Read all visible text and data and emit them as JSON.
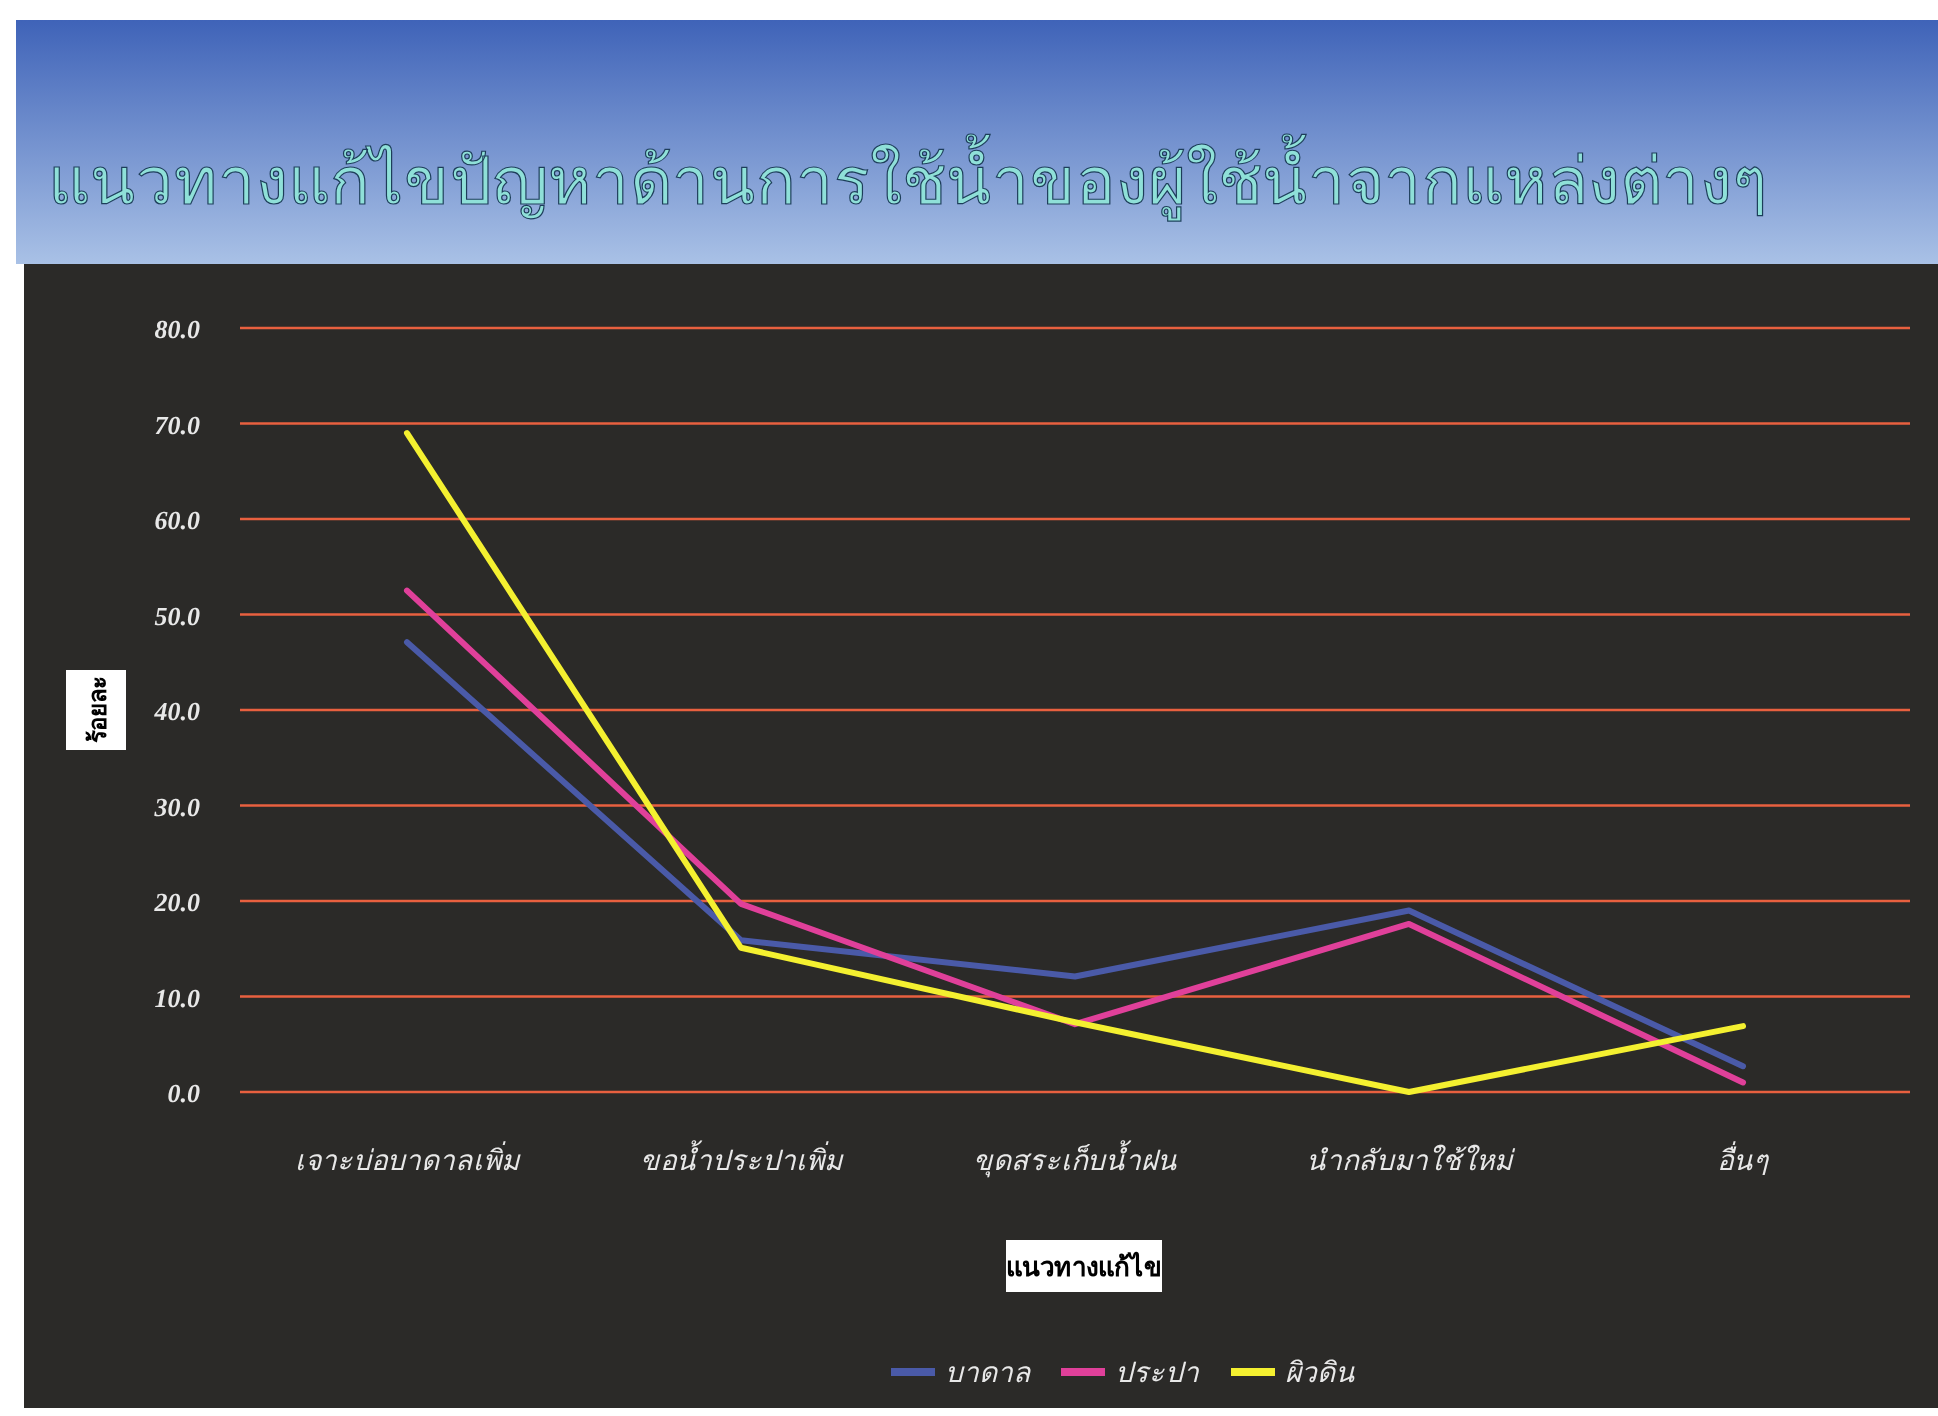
{
  "chart_data": {
    "type": "line",
    "title": "แนวทางแก้ไขปัญหาด้านการใช้น้ำของผู้ใช้น้ำจากแหล่งต่างๆ",
    "xlabel": "แนวทางแก้ไข",
    "ylabel": "ร้อยละ",
    "categories": [
      "เจาะบ่อบาดาลเพิ่ม",
      "ขอน้ำประปาเพิ่ม",
      "ขุดสระเก็บน้ำฝน",
      "นำกลับมาใช้ใหม่",
      "อื่นๆ"
    ],
    "series": [
      {
        "name": "บาดาล",
        "color": "#4a5aa8",
        "values": [
          47.1,
          15.9,
          12.1,
          19.0,
          2.7
        ]
      },
      {
        "name": "ประปา",
        "color": "#e0409a",
        "values": [
          52.5,
          19.7,
          7.1,
          17.6,
          1.0
        ]
      },
      {
        "name": "ผิวดิน",
        "color": "#f4f030",
        "values": [
          69.0,
          15.1,
          7.3,
          0.0,
          6.9
        ]
      }
    ],
    "ylim": [
      0,
      80
    ],
    "yticks": [
      {
        "value": 0,
        "label": "0.0"
      },
      {
        "value": 10,
        "label": "10.0"
      },
      {
        "value": 20,
        "label": "20.0"
      },
      {
        "value": 30,
        "label": "30.0"
      },
      {
        "value": 40,
        "label": "40.0"
      },
      {
        "value": 50,
        "label": "50.0"
      },
      {
        "value": 60,
        "label": "60.0"
      },
      {
        "value": 70,
        "label": "70.0"
      },
      {
        "value": 80,
        "label": "80.0"
      }
    ],
    "grid": "y",
    "legend": "bottom",
    "marker": "none",
    "line_style": "solid"
  }
}
